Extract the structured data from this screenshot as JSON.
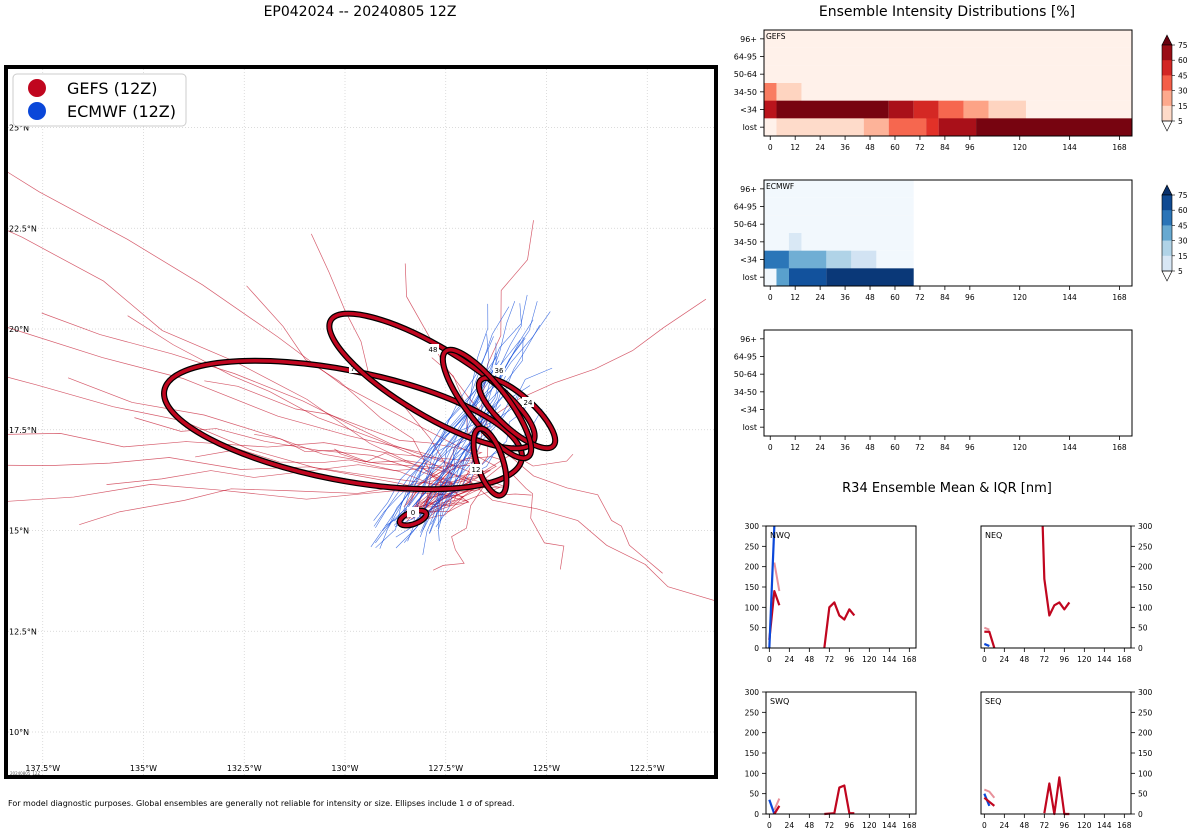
{
  "titles": {
    "map": "EP042024 -- 20240805 12Z",
    "ensemble": "Ensemble Intensity Distributions [%]",
    "r34": "R34 Ensemble Mean & IQR [nm]",
    "footnote": "For model diagnostic purposes. Global ensembles are generally not reliable for intensity or size. Ellipses include 1 σ of spread."
  },
  "colors": {
    "gefs": "#c0061f",
    "ecmwf": "#0a47d9",
    "gefs_light": "#e8909a",
    "ecmwf_light": "#8aa8ef"
  },
  "map": {
    "legend": [
      {
        "name": "GEFS (12Z)",
        "color": "#c0061f"
      },
      {
        "name": "ECMWF (12Z)",
        "color": "#0a47d9"
      }
    ],
    "lon_ticks": [
      "137.5°W",
      "135°W",
      "132.5°W",
      "130°W",
      "127.5°W",
      "125°W",
      "122.5°W"
    ],
    "lat_ticks": [
      "25°N",
      "22.5°N",
      "20°N",
      "17.5°N",
      "15°N",
      "12.5°N",
      "10°N"
    ],
    "ellipse_labels": [
      "0",
      "12",
      "24",
      "36",
      "48",
      "72"
    ],
    "stamp": "20240805_12Z"
  },
  "chart_data": [
    {
      "type": "heatmap",
      "title": "GEFS",
      "y_categories": [
        "96+",
        "64-95",
        "50-64",
        "34-50",
        "<34",
        "lost"
      ],
      "x_ticks": [
        "0",
        "12",
        "24",
        "36",
        "48",
        "60",
        "72",
        "84",
        "96",
        "120",
        "144",
        "168"
      ],
      "colorbar_ticks": [
        "75",
        "60",
        "45",
        "30",
        "15",
        "5"
      ],
      "rows": {
        "34-50": [
          [
            -3,
            3,
            40
          ],
          [
            3,
            15,
            15
          ]
        ],
        "<34": [
          [
            -3,
            3,
            75
          ],
          [
            3,
            57,
            95
          ],
          [
            57,
            69,
            80
          ],
          [
            69,
            81,
            65
          ],
          [
            81,
            93,
            45
          ],
          [
            93,
            105,
            30
          ],
          [
            105,
            123,
            15
          ]
        ],
        "lost": [
          [
            -3,
            3,
            2
          ],
          [
            3,
            45,
            12
          ],
          [
            45,
            57,
            25
          ],
          [
            57,
            75,
            45
          ],
          [
            75,
            81,
            60
          ],
          [
            81,
            99,
            80
          ],
          [
            99,
            174,
            95
          ]
        ]
      }
    },
    {
      "type": "heatmap",
      "title": "ECMWF",
      "y_categories": [
        "96+",
        "64-95",
        "50-64",
        "34-50",
        "<34",
        "lost"
      ],
      "x_ticks": [
        "0",
        "12",
        "24",
        "36",
        "48",
        "60",
        "72",
        "84",
        "96",
        "120",
        "144",
        "168"
      ],
      "colorbar_ticks": [
        "75",
        "60",
        "45",
        "30",
        "15",
        "5"
      ],
      "rows": {
        "34-50": [
          [
            9,
            15,
            12
          ]
        ],
        "<34": [
          [
            -3,
            9,
            65
          ],
          [
            9,
            27,
            45
          ],
          [
            27,
            39,
            28
          ],
          [
            39,
            51,
            15
          ]
        ],
        "lost": [
          [
            3,
            9,
            50
          ],
          [
            9,
            27,
            80
          ],
          [
            27,
            69,
            95
          ]
        ]
      }
    },
    {
      "type": "heatmap",
      "title": "",
      "y_categories": [
        "96+",
        "64-95",
        "50-64",
        "34-50",
        "<34",
        "lost"
      ],
      "x_ticks": [
        "0",
        "12",
        "24",
        "36",
        "48",
        "60",
        "72",
        "84",
        "96",
        "120",
        "144",
        "168"
      ],
      "rows": {}
    },
    {
      "type": "line",
      "title": "NWQ",
      "ylim": [
        0,
        300
      ],
      "y_ticks": [
        "0",
        "50",
        "100",
        "150",
        "200",
        "250",
        "300"
      ],
      "x_ticks": [
        "0",
        "24",
        "48",
        "72",
        "96",
        "120",
        "144",
        "168"
      ],
      "series": [
        {
          "name": "GEFS mean",
          "x": [
            0,
            6,
            12
          ],
          "y": [
            20,
            140,
            105
          ]
        },
        {
          "name": "GEFS IQR",
          "x": [
            6,
            12
          ],
          "y": [
            210,
            140
          ]
        },
        {
          "name": "ECMWF mean",
          "x": [
            0,
            6
          ],
          "y": [
            0,
            300
          ]
        },
        {
          "name": "GEFS mean",
          "x": [
            66,
            72,
            78,
            84,
            90,
            96,
            102
          ],
          "y": [
            0,
            100,
            112,
            80,
            70,
            95,
            80
          ]
        }
      ]
    },
    {
      "type": "line",
      "title": "NEQ",
      "ylim": [
        0,
        300
      ],
      "y_ticks": [
        "0",
        "50",
        "100",
        "150",
        "200",
        "250",
        "300"
      ],
      "x_ticks": [
        "0",
        "24",
        "48",
        "72",
        "96",
        "120",
        "144",
        "168"
      ],
      "series": [
        {
          "name": "GEFS mean",
          "x": [
            0,
            6,
            12
          ],
          "y": [
            40,
            40,
            0
          ]
        },
        {
          "name": "GEFS IQR",
          "x": [
            0,
            6
          ],
          "y": [
            50,
            45
          ]
        },
        {
          "name": "ECMWF mean",
          "x": [
            0,
            6
          ],
          "y": [
            10,
            5
          ]
        },
        {
          "name": "GEFS mean",
          "x": [
            70,
            72,
            78,
            84,
            90,
            96,
            102
          ],
          "y": [
            300,
            170,
            80,
            105,
            112,
            95,
            112
          ]
        }
      ]
    },
    {
      "type": "line",
      "title": "SWQ",
      "ylim": [
        0,
        300
      ],
      "y_ticks": [
        "0",
        "50",
        "100",
        "150",
        "200",
        "250",
        "300"
      ],
      "x_ticks": [
        "0",
        "24",
        "48",
        "72",
        "96",
        "120",
        "144",
        "168"
      ],
      "series": [
        {
          "name": "GEFS IQR",
          "x": [
            6,
            12
          ],
          "y": [
            10,
            38
          ]
        },
        {
          "name": "ECMWF mean",
          "x": [
            0,
            6
          ],
          "y": [
            35,
            0
          ]
        },
        {
          "name": "GEFS mean",
          "x": [
            6,
            12
          ],
          "y": [
            0,
            20
          ]
        },
        {
          "name": "GEFS mean",
          "x": [
            66,
            78,
            84,
            90,
            96,
            102
          ],
          "y": [
            0,
            2,
            65,
            70,
            2,
            2
          ]
        }
      ]
    },
    {
      "type": "line",
      "title": "SEQ",
      "ylim": [
        0,
        300
      ],
      "y_ticks": [
        "0",
        "50",
        "100",
        "150",
        "200",
        "250",
        "300"
      ],
      "x_ticks": [
        "0",
        "24",
        "48",
        "72",
        "96",
        "120",
        "144",
        "168"
      ],
      "series": [
        {
          "name": "GEFS IQR",
          "x": [
            0,
            6,
            12
          ],
          "y": [
            60,
            55,
            40
          ]
        },
        {
          "name": "ECMWF mean",
          "x": [
            0,
            6
          ],
          "y": [
            50,
            20
          ]
        },
        {
          "name": "GEFS mean",
          "x": [
            0,
            6,
            12
          ],
          "y": [
            40,
            30,
            20
          ]
        },
        {
          "name": "GEFS mean",
          "x": [
            72,
            78,
            84,
            90,
            96,
            102
          ],
          "y": [
            2,
            75,
            0,
            90,
            0,
            0
          ]
        }
      ]
    }
  ]
}
